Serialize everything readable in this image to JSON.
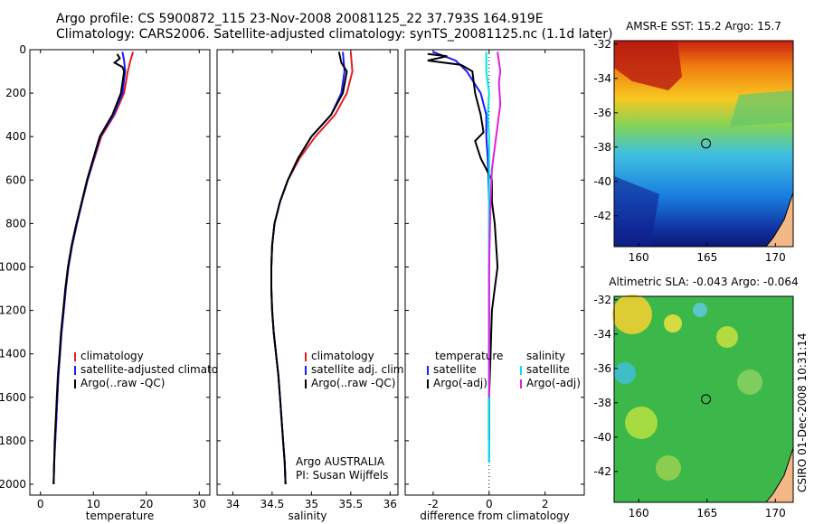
{
  "header": {
    "line1": "Argo profile: CS 5900872_115 23-Nov-2008 20081125_22 37.793S 164.919E",
    "line2": "Climatology: CARS2006. Satellite-adjusted climatology: synTS_20081125.nc (1.1d later)"
  },
  "footer": {
    "credit": "CSIRO 01-Dec-2008 10:31:14",
    "argo_org": "Argo AUSTRALIA",
    "pi": "PI: Susan Wijffels"
  },
  "colors": {
    "climatology": "#e02020",
    "satellite": "#1a1aff",
    "argo": "#000000",
    "argo_adj": "#e020e0",
    "satellite_adj": "#00e5e5"
  },
  "chart_data": [
    {
      "type": "line",
      "xlabel": "temperature",
      "ylabel": "",
      "xlim": [
        -2,
        32
      ],
      "ylim": [
        2050,
        0
      ],
      "xticks": [
        0,
        10,
        20,
        30
      ],
      "yticks": [
        0,
        200,
        400,
        600,
        800,
        1000,
        1200,
        1400,
        1600,
        1800,
        2000
      ],
      "legend": [
        "climatology",
        "satellite-adjusted climatology",
        "Argo(..raw -QC)"
      ],
      "series": [
        {
          "name": "climatology",
          "color": "climatology",
          "points": [
            [
              17.5,
              10
            ],
            [
              17.0,
              50
            ],
            [
              16.5,
              100
            ],
            [
              15.8,
              200
            ],
            [
              14.0,
              300
            ],
            [
              11.5,
              400
            ],
            [
              10.2,
              500
            ],
            [
              8.9,
              600
            ],
            [
              7.9,
              700
            ],
            [
              6.9,
              800
            ],
            [
              6.0,
              900
            ],
            [
              5.3,
              1000
            ],
            [
              4.8,
              1100
            ],
            [
              4.4,
              1200
            ],
            [
              4.0,
              1300
            ],
            [
              3.7,
              1400
            ],
            [
              3.4,
              1500
            ],
            [
              3.2,
              1600
            ],
            [
              3.0,
              1700
            ],
            [
              2.8,
              1800
            ],
            [
              2.6,
              1900
            ],
            [
              2.5,
              2000
            ]
          ]
        },
        {
          "name": "satellite-adjusted climatology",
          "color": "satellite",
          "points": [
            [
              15.5,
              10
            ],
            [
              15.8,
              50
            ],
            [
              16.0,
              100
            ],
            [
              15.5,
              200
            ],
            [
              13.8,
              300
            ],
            [
              11.3,
              400
            ],
            [
              10.1,
              500
            ],
            [
              8.9,
              600
            ],
            [
              7.9,
              700
            ],
            [
              6.9,
              800
            ],
            [
              6.0,
              900
            ],
            [
              5.3,
              1000
            ],
            [
              4.8,
              1100
            ],
            [
              4.4,
              1200
            ],
            [
              4.0,
              1300
            ],
            [
              3.7,
              1400
            ],
            [
              3.4,
              1500
            ],
            [
              3.2,
              1600
            ],
            [
              3.0,
              1700
            ],
            [
              2.8,
              1800
            ],
            [
              2.6,
              1900
            ],
            [
              2.5,
              2000
            ]
          ]
        },
        {
          "name": "Argo(..raw -QC)",
          "color": "argo",
          "points": [
            [
              14.5,
              20
            ],
            [
              15.0,
              40
            ],
            [
              14.0,
              60
            ],
            [
              15.5,
              80
            ],
            [
              15.8,
              100
            ],
            [
              15.2,
              200
            ],
            [
              13.6,
              300
            ],
            [
              11.2,
              400
            ],
            [
              10.0,
              500
            ],
            [
              8.8,
              600
            ],
            [
              7.8,
              700
            ],
            [
              6.8,
              800
            ],
            [
              5.9,
              900
            ],
            [
              5.2,
              1000
            ],
            [
              4.7,
              1100
            ],
            [
              4.3,
              1200
            ],
            [
              3.9,
              1300
            ],
            [
              3.6,
              1400
            ],
            [
              3.3,
              1500
            ],
            [
              3.1,
              1600
            ],
            [
              2.9,
              1700
            ],
            [
              2.7,
              1800
            ],
            [
              2.6,
              1900
            ],
            [
              2.5,
              2000
            ]
          ]
        }
      ]
    },
    {
      "type": "line",
      "xlabel": "salinity",
      "xlim": [
        33.8,
        36.1
      ],
      "ylim": [
        2050,
        0
      ],
      "xticks": [
        34,
        34.5,
        35,
        35.5,
        36
      ],
      "yticks": [
        0,
        200,
        400,
        600,
        800,
        1000,
        1200,
        1400,
        1600,
        1800,
        2000
      ],
      "legend": [
        "climatology",
        "satellite adj. clim.",
        "Argo(..raw -QC)"
      ],
      "series": [
        {
          "name": "climatology",
          "color": "climatology",
          "points": [
            [
              35.5,
              10
            ],
            [
              35.52,
              100
            ],
            [
              35.45,
              200
            ],
            [
              35.3,
              300
            ],
            [
              35.05,
              400
            ],
            [
              34.85,
              500
            ],
            [
              34.7,
              600
            ],
            [
              34.6,
              700
            ],
            [
              34.53,
              800
            ],
            [
              34.5,
              900
            ],
            [
              34.49,
              1000
            ],
            [
              34.49,
              1100
            ],
            [
              34.5,
              1200
            ],
            [
              34.52,
              1300
            ],
            [
              34.55,
              1400
            ],
            [
              34.58,
              1500
            ],
            [
              34.6,
              1600
            ],
            [
              34.62,
              1700
            ],
            [
              34.64,
              1800
            ],
            [
              34.66,
              1900
            ],
            [
              34.67,
              2000
            ]
          ]
        },
        {
          "name": "satellite adj. clim.",
          "color": "satellite",
          "points": [
            [
              35.4,
              10
            ],
            [
              35.42,
              100
            ],
            [
              35.38,
              200
            ],
            [
              35.25,
              300
            ],
            [
              35.0,
              400
            ],
            [
              34.83,
              500
            ],
            [
              34.7,
              600
            ],
            [
              34.6,
              700
            ],
            [
              34.53,
              800
            ],
            [
              34.5,
              900
            ],
            [
              34.49,
              1000
            ],
            [
              34.49,
              1100
            ],
            [
              34.5,
              1200
            ],
            [
              34.52,
              1300
            ],
            [
              34.55,
              1400
            ],
            [
              34.58,
              1500
            ],
            [
              34.6,
              1600
            ],
            [
              34.62,
              1700
            ],
            [
              34.64,
              1800
            ],
            [
              34.66,
              1900
            ],
            [
              34.67,
              2000
            ]
          ]
        },
        {
          "name": "Argo(..raw -QC)",
          "color": "argo",
          "points": [
            [
              35.35,
              10
            ],
            [
              35.38,
              60
            ],
            [
              35.45,
              100
            ],
            [
              35.4,
              200
            ],
            [
              35.25,
              300
            ],
            [
              35.0,
              400
            ],
            [
              34.83,
              500
            ],
            [
              34.7,
              600
            ],
            [
              34.6,
              700
            ],
            [
              34.53,
              800
            ],
            [
              34.5,
              900
            ],
            [
              34.49,
              1000
            ],
            [
              34.49,
              1100
            ],
            [
              34.5,
              1200
            ],
            [
              34.52,
              1300
            ],
            [
              34.55,
              1400
            ],
            [
              34.58,
              1500
            ],
            [
              34.6,
              1600
            ],
            [
              34.62,
              1700
            ],
            [
              34.64,
              1800
            ],
            [
              34.66,
              1900
            ],
            [
              34.67,
              2000
            ]
          ]
        }
      ]
    },
    {
      "type": "line",
      "xlabel": "difference from climatology",
      "xlim": [
        -3,
        3.4
      ],
      "ylim": [
        2050,
        0
      ],
      "xticks": [
        -2,
        0,
        2
      ],
      "yticks": [
        0,
        200,
        400,
        600,
        800,
        1000,
        1200,
        1400,
        1600,
        1800,
        2000
      ],
      "legend_left_title": "temperature",
      "legend_right_title": "salinity",
      "legend_left": [
        "satellite",
        "Argo(-adj)"
      ],
      "legend_right": [
        "satellite",
        "Argo(-adj)"
      ],
      "series": [
        {
          "name": "temperature satellite",
          "color": "satellite",
          "points": [
            [
              -2.0,
              10
            ],
            [
              -1.2,
              50
            ],
            [
              -0.8,
              100
            ],
            [
              -0.3,
              200
            ],
            [
              -0.1,
              300
            ],
            [
              -0.1,
              400
            ],
            [
              -0.05,
              500
            ],
            [
              0,
              700
            ],
            [
              0,
              1000
            ],
            [
              0,
              1500
            ],
            [
              0,
              1900
            ]
          ]
        },
        {
          "name": "temperature Argo(-adj)",
          "color": "argo",
          "points": [
            [
              -2.2,
              20
            ],
            [
              -1.5,
              30
            ],
            [
              -2.2,
              50
            ],
            [
              -1.0,
              70
            ],
            [
              -0.6,
              100
            ],
            [
              -0.5,
              200
            ],
            [
              -0.3,
              300
            ],
            [
              -0.2,
              380
            ],
            [
              -0.5,
              420
            ],
            [
              -0.3,
              500
            ],
            [
              0.1,
              600
            ],
            [
              0.1,
              700
            ],
            [
              0.2,
              800
            ],
            [
              0.3,
              1000
            ],
            [
              0.1,
              1200
            ],
            [
              0.05,
              1400
            ],
            [
              0,
              1600
            ],
            [
              0,
              1800
            ]
          ]
        },
        {
          "name": "salinity satellite",
          "color": "satellite_adj",
          "points": [
            [
              -0.1,
              10
            ],
            [
              -0.1,
              100
            ],
            [
              0,
              200
            ],
            [
              -0.05,
              300
            ],
            [
              0,
              400
            ],
            [
              0,
              600
            ],
            [
              0,
              900
            ],
            [
              0,
              1400
            ],
            [
              0,
              1900
            ]
          ]
        },
        {
          "name": "salinity Argo(-adj)",
          "color": "argo_adj",
          "points": [
            [
              0.3,
              10
            ],
            [
              0.4,
              100
            ],
            [
              0.35,
              150
            ],
            [
              0.4,
              250
            ],
            [
              0.3,
              350
            ],
            [
              0.2,
              450
            ],
            [
              0.1,
              550
            ],
            [
              0.05,
              700
            ],
            [
              0,
              1000
            ],
            [
              0,
              1600
            ]
          ]
        }
      ]
    }
  ],
  "maps": [
    {
      "title": "AMSR-E SST: 15.2 Argo: 15.7",
      "xticks": [
        "160",
        "165",
        "170"
      ],
      "yticks": [
        "-32",
        "-34",
        "-36",
        "-38",
        "-40",
        "-42"
      ],
      "marker": [
        164.919,
        -37.793
      ]
    },
    {
      "title": "Altimetric SLA: -0.043 Argo: -0.064",
      "xticks": [
        "160",
        "165",
        "170"
      ],
      "yticks": [
        "-32",
        "-34",
        "-36",
        "-38",
        "-40",
        "-42"
      ],
      "marker": [
        164.919,
        -37.793
      ]
    }
  ]
}
